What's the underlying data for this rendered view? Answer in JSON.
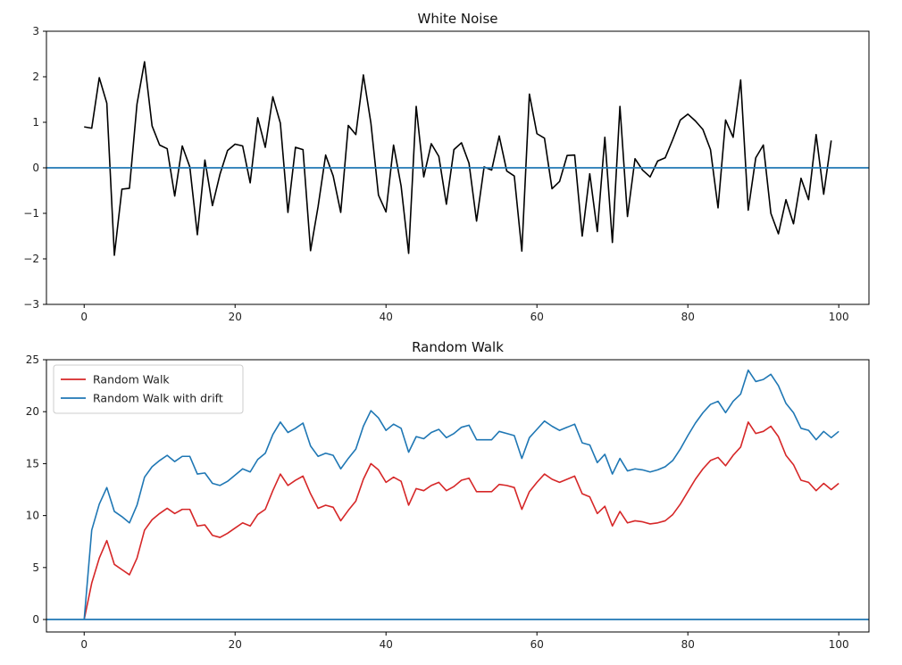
{
  "chart_data": [
    {
      "type": "line",
      "title": "White Noise",
      "xlabel": "",
      "ylabel": "",
      "xlim": [
        -5,
        104
      ],
      "ylim": [
        -3,
        3
      ],
      "xticks": [
        0,
        20,
        40,
        60,
        80,
        100
      ],
      "yticks": [
        -3,
        -2,
        -1,
        0,
        1,
        2,
        3
      ],
      "grid": false,
      "legend": null,
      "series": [
        {
          "color": "#000000",
          "x_start": 0,
          "values": [
            0.9,
            0.87,
            1.98,
            1.42,
            -1.92,
            -0.47,
            -0.45,
            1.4,
            2.33,
            0.92,
            0.5,
            0.42,
            -0.62,
            0.48,
            0.02,
            -1.47,
            0.17,
            -0.83,
            -0.14,
            0.38,
            0.52,
            0.48,
            -0.33,
            1.1,
            0.45,
            1.56,
            0.98,
            -0.98,
            0.45,
            0.4,
            -1.82,
            -0.85,
            0.28,
            -0.18,
            -0.98,
            0.93,
            0.73,
            2.04,
            0.98,
            -0.6,
            -0.97,
            0.5,
            -0.4,
            -1.88,
            1.35,
            -0.2,
            0.53,
            0.25,
            -0.8,
            0.4,
            0.55,
            0.1,
            -1.17,
            0.02,
            -0.05,
            0.7,
            -0.07,
            -0.18,
            -1.83,
            1.62,
            0.75,
            0.65,
            -0.46,
            -0.3,
            0.27,
            0.28,
            -1.5,
            -0.13,
            -1.4,
            0.67,
            -1.64,
            1.35,
            -1.07,
            0.2,
            -0.05,
            -0.2,
            0.15,
            0.22,
            0.62,
            1.05,
            1.18,
            1.03,
            0.84,
            0.4,
            -0.88,
            1.05,
            0.67,
            1.93,
            -0.93,
            0.22,
            0.5,
            -1.0,
            -1.45,
            -0.7,
            -1.23,
            -0.23,
            -0.7,
            0.73,
            -0.58,
            0.6
          ]
        },
        {
          "color": "#1f77b4",
          "type": "hline",
          "y": 0
        }
      ]
    },
    {
      "type": "line",
      "title": "Random Walk",
      "xlabel": "",
      "ylabel": "",
      "xlim": [
        -5,
        104
      ],
      "ylim": [
        -1.2,
        25
      ],
      "xticks": [
        0,
        20,
        40,
        60,
        80,
        100
      ],
      "yticks": [
        0,
        5,
        10,
        15,
        20,
        25
      ],
      "grid": false,
      "legend": "top-left",
      "series": [
        {
          "name": "Random Walk",
          "color": "#d62728",
          "x_start": 0,
          "values": [
            0.0,
            3.5,
            5.9,
            7.6,
            5.3,
            4.8,
            4.3,
            5.9,
            8.6,
            9.6,
            10.2,
            10.7,
            10.2,
            10.6,
            10.6,
            9.0,
            9.1,
            8.1,
            7.9,
            8.3,
            8.8,
            9.3,
            9.0,
            10.1,
            10.6,
            12.4,
            14.0,
            12.9,
            13.4,
            13.8,
            12.1,
            10.7,
            11.0,
            10.8,
            9.5,
            10.5,
            11.4,
            13.5,
            15.0,
            14.4,
            13.2,
            13.7,
            13.3,
            11.0,
            12.6,
            12.4,
            12.9,
            13.2,
            12.4,
            12.8,
            13.4,
            13.6,
            12.3,
            12.3,
            12.3,
            13.0,
            12.9,
            12.7,
            10.6,
            12.3,
            13.2,
            14.0,
            13.5,
            13.2,
            13.5,
            13.8,
            12.1,
            11.8,
            10.2,
            10.9,
            9.0,
            10.4,
            9.3,
            9.5,
            9.4,
            9.2,
            9.3,
            9.5,
            10.1,
            11.1,
            12.3,
            13.5,
            14.5,
            15.3,
            15.6,
            14.8,
            15.8,
            16.6,
            19.0,
            17.9,
            18.1,
            18.6,
            17.6,
            15.8,
            14.9,
            13.4,
            13.2,
            12.4,
            13.1,
            12.5,
            13.1
          ]
        },
        {
          "name": "Random Walk with drift",
          "color": "#1f77b4",
          "x_start": 0,
          "values": [
            0.0,
            8.6,
            11.1,
            12.7,
            10.4,
            9.9,
            9.3,
            11.0,
            13.7,
            14.7,
            15.3,
            15.8,
            15.2,
            15.7,
            15.7,
            14.0,
            14.1,
            13.1,
            12.9,
            13.3,
            13.9,
            14.5,
            14.2,
            15.4,
            16.0,
            17.8,
            19.0,
            18.0,
            18.4,
            18.9,
            16.7,
            15.7,
            16.0,
            15.8,
            14.5,
            15.5,
            16.4,
            18.6,
            20.1,
            19.4,
            18.2,
            18.8,
            18.4,
            16.1,
            17.6,
            17.4,
            18.0,
            18.3,
            17.5,
            17.9,
            18.5,
            18.7,
            17.3,
            17.3,
            17.3,
            18.1,
            17.9,
            17.7,
            15.5,
            17.5,
            18.3,
            19.1,
            18.6,
            18.2,
            18.5,
            18.8,
            17.0,
            16.8,
            15.1,
            15.9,
            14.0,
            15.5,
            14.3,
            14.5,
            14.4,
            14.2,
            14.4,
            14.7,
            15.3,
            16.4,
            17.7,
            18.9,
            19.9,
            20.7,
            21.0,
            19.9,
            21.0,
            21.7,
            24.0,
            22.9,
            23.1,
            23.6,
            22.5,
            20.8,
            19.9,
            18.4,
            18.2,
            17.3,
            18.1,
            17.5,
            18.1
          ]
        },
        {
          "color": "#1f77b4",
          "type": "hline",
          "y": 0
        }
      ]
    }
  ]
}
